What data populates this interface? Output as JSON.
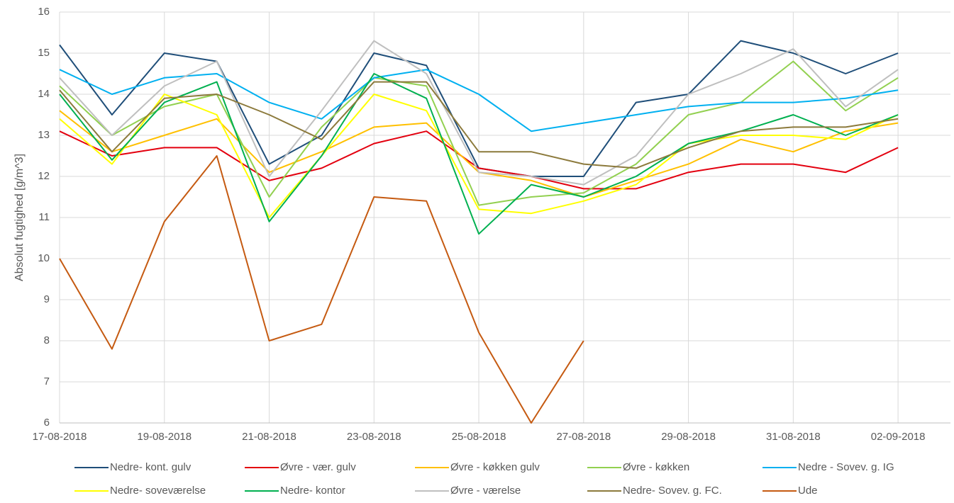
{
  "chart_data": {
    "type": "line",
    "y_label": "Absolut fugtighed [g/m^3]",
    "x": [
      "17-08-2018",
      "18-08-2018",
      "19-08-2018",
      "20-08-2018",
      "21-08-2018",
      "22-08-2018",
      "23-08-2018",
      "24-08-2018",
      "25-08-2018",
      "26-08-2018",
      "27-08-2018",
      "28-08-2018",
      "29-08-2018",
      "30-08-2018",
      "31-08-2018",
      "01-09-2018",
      "02-09-2018"
    ],
    "xlim": [
      "17-08-2018",
      "03-09-2018"
    ],
    "xticks": [
      "17-08-2018",
      "19-08-2018",
      "21-08-2018",
      "23-08-2018",
      "25-08-2018",
      "27-08-2018",
      "29-08-2018",
      "31-08-2018",
      "02-09-2018"
    ],
    "ylim": [
      6,
      16
    ],
    "yticks": [
      6,
      7,
      8,
      9,
      10,
      11,
      12,
      13,
      14,
      15,
      16
    ],
    "grid": true,
    "legend": "bottom",
    "series": [
      {
        "name": "Nedre- kont. gulv",
        "color": "#1f4e79",
        "values": [
          15.2,
          13.5,
          15.0,
          14.8,
          12.3,
          13.0,
          15.0,
          14.7,
          12.2,
          12.0,
          12.0,
          13.8,
          14.0,
          15.3,
          15.0,
          14.5,
          15.0
        ]
      },
      {
        "name": "Øvre - vær. gulv",
        "color": "#e3000f",
        "values": [
          13.1,
          12.5,
          12.7,
          12.7,
          11.9,
          12.2,
          12.8,
          13.1,
          12.2,
          12.0,
          11.7,
          11.7,
          12.1,
          12.3,
          12.3,
          12.1,
          12.7
        ]
      },
      {
        "name": "Øvre - køkken gulv",
        "color": "#ffc000",
        "values": [
          13.6,
          12.6,
          13.0,
          13.4,
          12.1,
          12.6,
          13.2,
          13.3,
          12.1,
          11.9,
          11.5,
          11.9,
          12.3,
          12.9,
          12.6,
          13.1,
          13.3
        ]
      },
      {
        "name": "Øvre - køkken",
        "color": "#92d050",
        "values": [
          14.2,
          13.0,
          13.7,
          14.0,
          11.5,
          13.2,
          14.4,
          14.2,
          11.3,
          11.5,
          11.6,
          12.3,
          13.5,
          13.8,
          14.8,
          13.6,
          14.4
        ]
      },
      {
        "name": "Nedre - Sovev. g. IG",
        "color": "#00b0f0",
        "values": [
          14.6,
          14.0,
          14.4,
          14.5,
          13.8,
          13.4,
          14.4,
          14.6,
          14.0,
          13.1,
          13.3,
          13.5,
          13.7,
          13.8,
          13.8,
          13.9,
          14.1
        ]
      },
      {
        "name": "Nedre- soveværelse",
        "color": "#ffff00",
        "values": [
          13.4,
          12.3,
          14.0,
          13.5,
          11.0,
          12.5,
          14.0,
          13.6,
          11.2,
          11.1,
          11.4,
          11.8,
          12.8,
          13.0,
          13.0,
          12.9,
          13.5
        ]
      },
      {
        "name": "Nedre- kontor",
        "color": "#00b050",
        "values": [
          14.0,
          12.4,
          13.8,
          14.3,
          10.9,
          12.5,
          14.5,
          13.9,
          10.6,
          11.8,
          11.5,
          12.0,
          12.8,
          13.1,
          13.5,
          13.0,
          13.5
        ]
      },
      {
        "name": "Øvre - værelse",
        "color": "#bfbfbf",
        "values": [
          14.4,
          13.0,
          14.2,
          14.8,
          12.0,
          13.6,
          15.3,
          14.5,
          12.1,
          12.0,
          11.8,
          12.5,
          14.0,
          14.5,
          15.1,
          13.7,
          14.6
        ]
      },
      {
        "name": "Nedre- Sovev. g. FC.",
        "color": "#8c7a3c",
        "values": [
          14.1,
          12.6,
          13.9,
          14.0,
          13.5,
          12.9,
          14.3,
          14.3,
          12.6,
          12.6,
          12.3,
          12.2,
          12.7,
          13.1,
          13.2,
          13.2,
          13.4
        ]
      },
      {
        "name": "Ude",
        "color": "#c55a11",
        "values": [
          10.0,
          7.8,
          10.9,
          12.5,
          8.0,
          8.4,
          11.5,
          11.4,
          8.2,
          6.0,
          8.0,
          null,
          null,
          null,
          null,
          null,
          null
        ]
      }
    ]
  }
}
